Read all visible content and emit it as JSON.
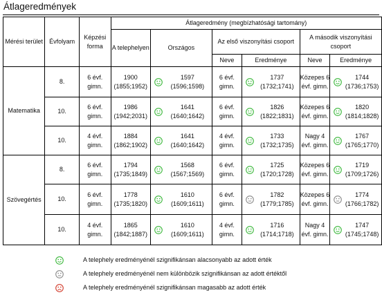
{
  "title": "Átlageredmények",
  "headers": {
    "area": "Mérési terület",
    "grade": "Évfolyam",
    "form": "Képzési forma",
    "group": "Átlageredmény (megbízhatósági tartomány)",
    "site": "A telephelyen",
    "national": "Országos",
    "first": "Az első viszonyítási csoport",
    "second": "A második viszonyítási csoport",
    "name": "Neve",
    "result": "Eredménye"
  },
  "areas": [
    "Matematika",
    "Szövegértés"
  ],
  "rows": [
    {
      "grade": "8.",
      "form": "6 évf. gimn.",
      "site": "1900",
      "site_ci": "(1855;1952)",
      "nat_icon": "green",
      "nat": "1597",
      "nat_ci": "(1596;1598)",
      "g1_name": "6 évf. gimn.",
      "g1_icon": "green",
      "g1": "1737",
      "g1_ci": "(1732;1741)",
      "g2_name": "Közepes 6 évf. gimn.",
      "g2_icon": "green",
      "g2": "1744",
      "g2_ci": "(1736;1753)"
    },
    {
      "grade": "10.",
      "form": "6 évf. gimn.",
      "site": "1986",
      "site_ci": "(1942;2031)",
      "nat_icon": "green",
      "nat": "1641",
      "nat_ci": "(1640;1642)",
      "g1_name": "6 évf. gimn.",
      "g1_icon": "green",
      "g1": "1826",
      "g1_ci": "(1822;1831)",
      "g2_name": "Közepes 6 évf. gimn.",
      "g2_icon": "green",
      "g2": "1820",
      "g2_ci": "(1814;1828)"
    },
    {
      "grade": "10.",
      "form": "4 évf. gimn.",
      "site": "1884",
      "site_ci": "(1862;1902)",
      "nat_icon": "green",
      "nat": "1641",
      "nat_ci": "(1640;1642)",
      "g1_name": "4 évf. gimn.",
      "g1_icon": "green",
      "g1": "1733",
      "g1_ci": "(1732;1735)",
      "g2_name": "Nagy 4 évf. gimn.",
      "g2_icon": "green",
      "g2": "1767",
      "g2_ci": "(1765;1770)"
    },
    {
      "grade": "8.",
      "form": "6 évf. gimn.",
      "site": "1794",
      "site_ci": "(1735;1849)",
      "nat_icon": "green",
      "nat": "1568",
      "nat_ci": "(1567;1569)",
      "g1_name": "6 évf. gimn.",
      "g1_icon": "green",
      "g1": "1725",
      "g1_ci": "(1720;1728)",
      "g2_name": "Közepes 6 évf. gimn.",
      "g2_icon": "green",
      "g2": "1719",
      "g2_ci": "(1709;1726)"
    },
    {
      "grade": "10.",
      "form": "6 évf. gimn.",
      "site": "1778",
      "site_ci": "(1735;1820)",
      "nat_icon": "green",
      "nat": "1610",
      "nat_ci": "(1609;1611)",
      "g1_name": "6 évf. gimn.",
      "g1_icon": "gray",
      "g1": "1782",
      "g1_ci": "(1779;1785)",
      "g2_name": "Közepes 6 évf. gimn.",
      "g2_icon": "gray",
      "g2": "1774",
      "g2_ci": "(1766;1782)"
    },
    {
      "grade": "10.",
      "form": "4 évf. gimn.",
      "site": "1865",
      "site_ci": "(1842;1887)",
      "nat_icon": "green",
      "nat": "1610",
      "nat_ci": "(1609;1611)",
      "g1_name": "4 évf. gimn.",
      "g1_icon": "green",
      "g1": "1716",
      "g1_ci": "(1714;1718)",
      "g2_name": "Nagy 4 évf. gimn.",
      "g2_icon": "green",
      "g2": "1747",
      "g2_ci": "(1745;1748)"
    }
  ],
  "legend": [
    {
      "icon": "green",
      "text": "A telephely eredményénél szignifikánsan alacsonyabb az adott érték"
    },
    {
      "icon": "gray",
      "text": "A telephely eredményénél nem különbözik szignifikánsan az adott értéktől"
    },
    {
      "icon": "red",
      "text": "A telephely eredményénél szignifikánsan magasabb az adott érték"
    }
  ],
  "colors": {
    "green": "#3cb83c",
    "gray": "#8a8a8a",
    "red": "#d23a2a"
  }
}
